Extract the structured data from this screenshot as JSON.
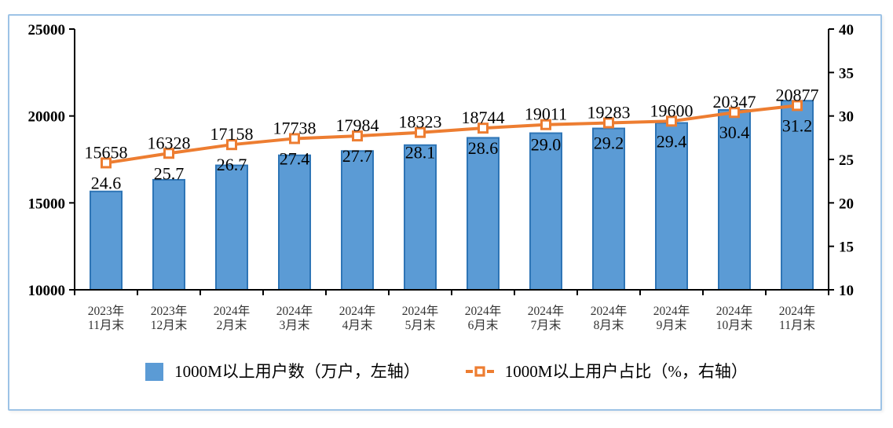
{
  "chart_data": {
    "type": "bar+line combo",
    "categories": [
      [
        "2023年",
        "11月末"
      ],
      [
        "2023年",
        "12月末"
      ],
      [
        "2024年",
        "2月末"
      ],
      [
        "2024年",
        "3月末"
      ],
      [
        "2024年",
        "4月末"
      ],
      [
        "2024年",
        "5月末"
      ],
      [
        "2024年",
        "6月末"
      ],
      [
        "2024年",
        "7月末"
      ],
      [
        "2024年",
        "8月末"
      ],
      [
        "2024年",
        "9月末"
      ],
      [
        "2024年",
        "10月末"
      ],
      [
        "2024年",
        "11月末"
      ]
    ],
    "series": [
      {
        "name": "1000M以上用户数（万户，左轴）",
        "type": "bar",
        "axis": "left",
        "values": [
          15658,
          16328,
          17158,
          17738,
          17984,
          18323,
          18744,
          19011,
          19283,
          19600,
          20347,
          20877
        ],
        "labels": [
          "15658",
          "16328",
          "17158",
          "17738",
          "17984",
          "18323",
          "18744",
          "19011",
          "19283",
          "19600",
          "20347",
          "20877"
        ]
      },
      {
        "name": "1000M以上用户占比（%，右轴）",
        "type": "line",
        "axis": "right",
        "values": [
          24.6,
          25.7,
          26.7,
          27.4,
          27.7,
          28.1,
          28.6,
          29.0,
          29.2,
          29.4,
          30.4,
          31.2
        ],
        "labels": [
          "24.6",
          "25.7",
          "26.7",
          "27.4",
          "27.7",
          "28.1",
          "28.6",
          "29.0",
          "29.2",
          "29.4",
          "30.4",
          "31.2"
        ]
      }
    ],
    "left_axis": {
      "min": 10000,
      "max": 25000,
      "ticks": [
        25000,
        20000,
        15000,
        10000
      ],
      "tick_labels": [
        "25000",
        "20000",
        "15000",
        "10000"
      ]
    },
    "right_axis": {
      "min": 10,
      "max": 40,
      "ticks": [
        40,
        35,
        30,
        25,
        20,
        15,
        10
      ],
      "tick_labels": [
        "40",
        "35",
        "30",
        "25",
        "20",
        "15",
        "10"
      ]
    },
    "grid": false,
    "legend_position": "bottom-center",
    "colors": {
      "bar_fill": "#5B9BD5",
      "bar_stroke": "#2E75B6",
      "line": "#ED7D31",
      "marker_fill": "#FFFFFF",
      "axis": "#000000",
      "label_text": "#000000",
      "category_text": "#333333",
      "frame_border": "#9DC3E6"
    }
  }
}
